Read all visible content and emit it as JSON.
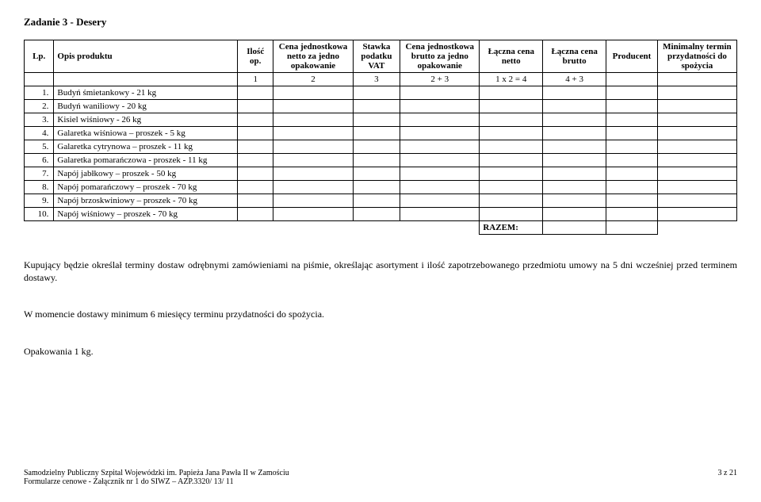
{
  "title": "Zadanie 3 - Desery",
  "headers": {
    "lp": "Lp.",
    "opis": "Opis produktu",
    "ilosc": "Ilość op.",
    "cena_netto": "Cena jednostkowa netto za jedno opakowanie",
    "vat": "Stawka podatku VAT",
    "cena_brutto": "Cena jednostkowa brutto za jedno opakowanie",
    "laczna_netto": "Łączna cena netto",
    "laczna_brutto": "Łączna cena brutto",
    "producent": "Producent",
    "minimalny": "Minimalny termin przydatności do spożycia"
  },
  "numrow": {
    "ilosc": "1",
    "cena_netto": "2",
    "vat": "3",
    "cena_brutto": "2 + 3",
    "laczna_netto": "1 x 2 = 4",
    "laczna_brutto": "4 + 3"
  },
  "rows": [
    {
      "lp": "1.",
      "opis": "Budyń śmietankowy - 21 kg"
    },
    {
      "lp": "2.",
      "opis": "Budyń waniliowy - 20 kg"
    },
    {
      "lp": "3.",
      "opis": "Kisiel wiśniowy - 26 kg"
    },
    {
      "lp": "4.",
      "opis": "Galaretka wiśniowa – proszek - 5 kg"
    },
    {
      "lp": "5.",
      "opis": "Galaretka cytrynowa – proszek - 11 kg"
    },
    {
      "lp": "6.",
      "opis": "Galaretka pomarańczowa - proszek - 11 kg"
    },
    {
      "lp": "7.",
      "opis": "Napój jabłkowy – proszek - 50 kg"
    },
    {
      "lp": "8.",
      "opis": "Napój pomarańczowy – proszek - 70 kg"
    },
    {
      "lp": "9.",
      "opis": "Napój brzoskwiniowy – proszek - 70 kg"
    },
    {
      "lp": "10.",
      "opis": "Napój wiśniowy – proszek - 70 kg"
    }
  ],
  "razem": "RAZEM:",
  "para1": "Kupujący będzie określał terminy dostaw odrębnymi zamówieniami na piśmie, określając asortyment i ilość zapotrzebowanego przedmiotu umowy na 5 dni wcześniej przed terminem dostawy.",
  "para2": "W momencie dostawy minimum 6 miesięcy terminu przydatności do spożycia.",
  "para3": "Opakowania 1 kg.",
  "footer": {
    "line1": "Samodzielny Publiczny Szpital Wojewódzki im. Papieża Jana Pawła II w Zamościu",
    "line2": "Formularze cenowe - Załącznik nr 1 do SIWZ – AZP.3320/ 13/ 11",
    "page": "3 z 21"
  }
}
